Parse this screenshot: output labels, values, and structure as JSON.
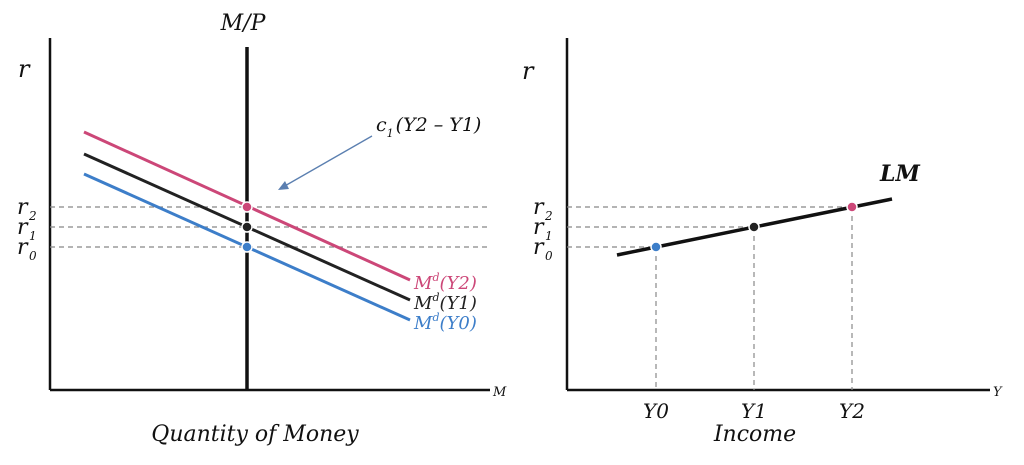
{
  "left_panel": {
    "y_axis_label": "r",
    "x_axis_label": "M",
    "supply_label": "M/P",
    "caption": "Quantity of Money",
    "rate_labels": [
      {
        "base": "r",
        "sub": "2"
      },
      {
        "base": "r",
        "sub": "1"
      },
      {
        "base": "r",
        "sub": "0"
      }
    ],
    "curves": [
      {
        "label_main": "M",
        "label_sup": "d",
        "label_arg": "(Y2)",
        "color": "#cc4778"
      },
      {
        "label_main": "M",
        "label_sup": "d",
        "label_arg": "(Y1)",
        "color": "#222222"
      },
      {
        "label_main": "M",
        "label_sup": "d",
        "label_arg": "(Y0)",
        "color": "#3d7ec9"
      }
    ],
    "annotation": {
      "c": "c",
      "c_sub": "1",
      "expr": "(Y2 – Y1)",
      "arrow_color": "#5b7fb0"
    }
  },
  "right_panel": {
    "y_axis_label": "r",
    "x_axis_label": "Y",
    "caption": "Income",
    "curve_label": "LM",
    "rate_labels": [
      {
        "base": "r",
        "sub": "2"
      },
      {
        "base": "r",
        "sub": "1"
      },
      {
        "base": "r",
        "sub": "0"
      }
    ],
    "income_labels": [
      "Y0",
      "Y1",
      "Y2"
    ],
    "point_colors": [
      "#3d7ec9",
      "#222222",
      "#cc4778"
    ]
  }
}
